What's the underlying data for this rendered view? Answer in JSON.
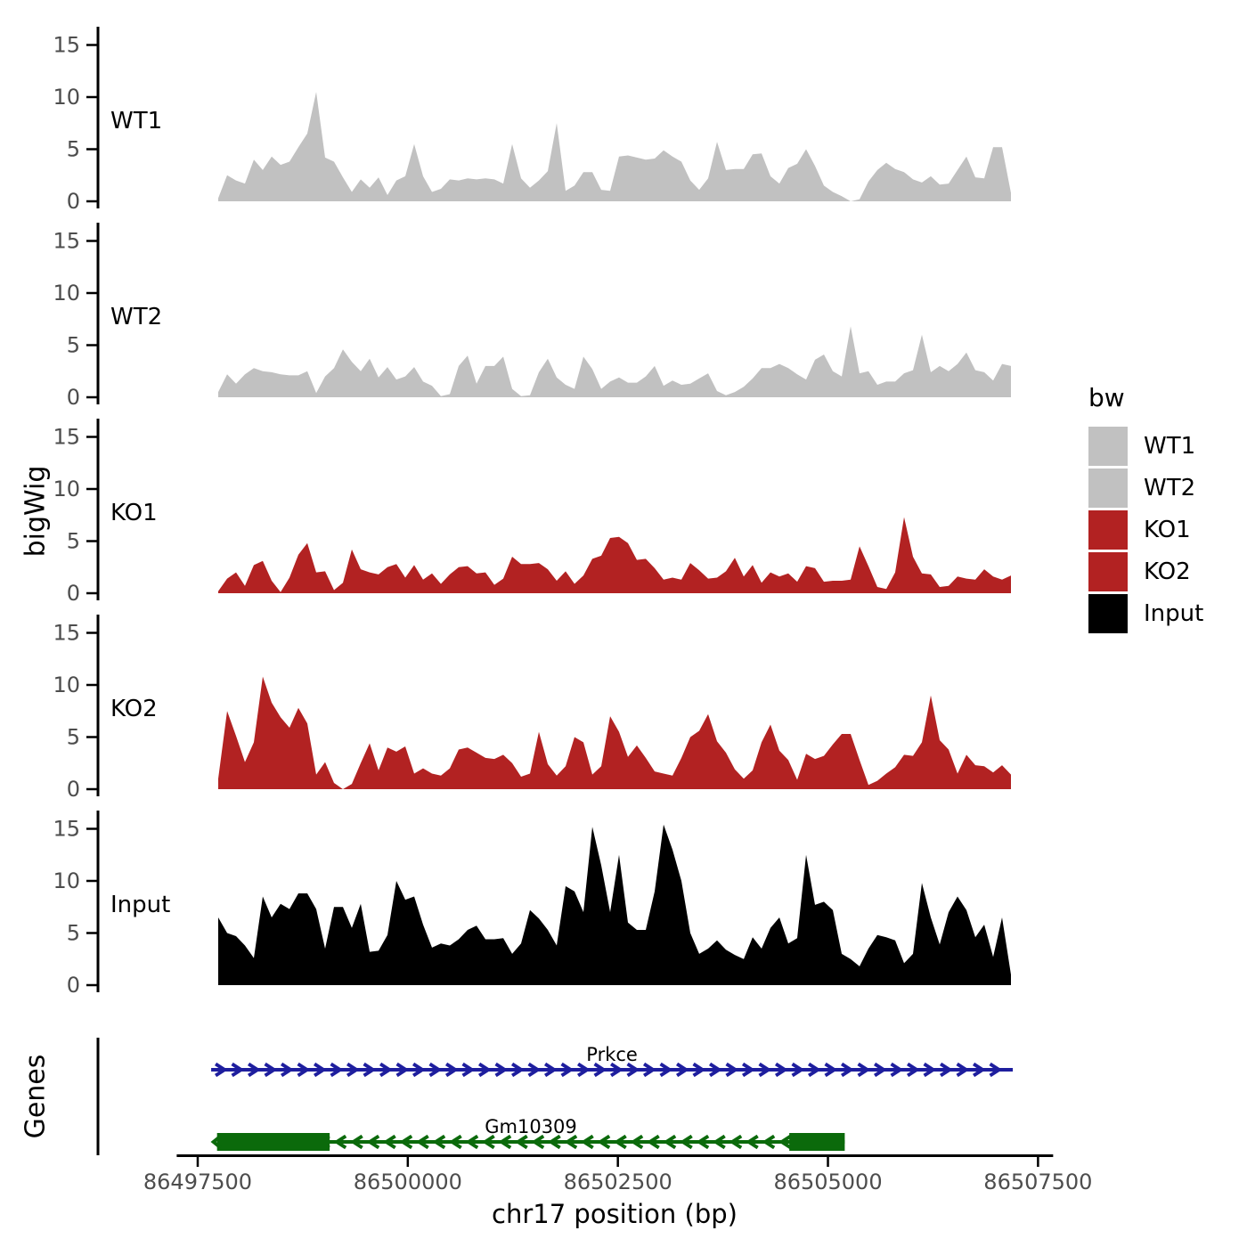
{
  "figure": {
    "y_axis_title": "bigWig",
    "genes_axis_title": "Genes",
    "x_axis_title": "chr17 position (bp)"
  },
  "legend": {
    "title": "bw",
    "entries": [
      {
        "label": "WT1",
        "color": "#c1c1c1"
      },
      {
        "label": "WT2",
        "color": "#c1c1c1"
      },
      {
        "label": "KO1",
        "color": "#b22222"
      },
      {
        "label": "KO2",
        "color": "#b22222"
      },
      {
        "label": "Input",
        "color": "#000000"
      }
    ]
  },
  "chart_data": {
    "type": "area",
    "title": "",
    "xlabel": "chr17 position (bp)",
    "ylabel": "bigWig",
    "genes_panel_label": "Genes",
    "xlim": [
      86497250,
      86507680
    ],
    "x_ticks": [
      86497500,
      86500000,
      86502500,
      86505000,
      86507500
    ],
    "ylim": [
      0,
      16.8
    ],
    "y_ticks": [
      0,
      5,
      10,
      15
    ],
    "grid": false,
    "legend_position": "right",
    "x_start": 86497744,
    "x_step": 106,
    "tracks": [
      {
        "name": "WT1",
        "color": "#c1c1c1",
        "values": [
          0.3,
          2.5,
          2,
          1.7,
          4,
          3,
          4.3,
          3.5,
          3.8,
          5.2,
          6.5,
          10.5,
          4.2,
          3.8,
          2.3,
          0.9,
          2.1,
          1.3,
          2.3,
          0.6,
          2,
          2.4,
          5.5,
          2.4,
          0.9,
          1.2,
          2.1,
          2,
          2.2,
          2.1,
          2.2,
          2.1,
          1.7,
          5.5,
          2.2,
          1.3,
          2,
          2.9,
          7.5,
          1,
          1.5,
          2.8,
          2.8,
          1.1,
          1,
          4.3,
          4.4,
          4.2,
          4,
          4.1,
          4.9,
          4.3,
          3.8,
          2,
          1.1,
          2.2,
          5.7,
          3,
          3.1,
          3.1,
          4.5,
          4.6,
          2.4,
          1.7,
          3.2,
          3.6,
          5,
          3.4,
          1.5,
          0.9,
          0.5,
          0,
          0.2,
          1.9,
          3,
          3.7,
          3.1,
          2.8,
          2.1,
          1.8,
          2.4,
          1.6,
          1.7,
          3,
          4.3,
          2.3,
          2.2,
          5.2,
          5.2,
          0.8
        ]
      },
      {
        "name": "WT2",
        "color": "#c1c1c1",
        "values": [
          0.5,
          2.2,
          1.3,
          2.2,
          2.8,
          2.5,
          2.4,
          2.2,
          2.1,
          2.1,
          2.5,
          0.4,
          2,
          2.8,
          4.6,
          3.4,
          2.5,
          3.7,
          1.9,
          2.9,
          1.7,
          2,
          2.9,
          1.5,
          1.1,
          0.1,
          0.3,
          3,
          4,
          1.3,
          3,
          3,
          3.9,
          0.8,
          0.1,
          0.2,
          2.4,
          3.7,
          1.9,
          1.2,
          0.8,
          3.9,
          2.7,
          0.8,
          1.5,
          1.9,
          1.4,
          1.4,
          2,
          3,
          1.1,
          1.6,
          1.2,
          1.3,
          1.8,
          2.3,
          0.6,
          0.2,
          0.5,
          1,
          1.8,
          2.8,
          2.8,
          3.2,
          2.8,
          2.2,
          1.7,
          3.6,
          4.1,
          2.5,
          2,
          6.8,
          2.3,
          2.5,
          1.2,
          1.5,
          1.5,
          2.3,
          2.6,
          6,
          2.4,
          3,
          2.5,
          3.2,
          4.3,
          2.6,
          2.4,
          1.6,
          3.2,
          3
        ]
      },
      {
        "name": "KO1",
        "color": "#b22222",
        "values": [
          0.2,
          1.4,
          2,
          0.7,
          2.7,
          3.1,
          1.2,
          0.1,
          1.5,
          3.7,
          4.8,
          2,
          2.1,
          0.3,
          1,
          4.2,
          2.3,
          2,
          1.8,
          2.5,
          2.8,
          1.5,
          2.7,
          1.3,
          1.9,
          0.9,
          1.8,
          2.5,
          2.6,
          1.9,
          2,
          0.8,
          1.4,
          3.5,
          2.8,
          2.8,
          2.9,
          2.3,
          1.2,
          2.1,
          0.9,
          1.7,
          3.3,
          3.6,
          5.3,
          5.4,
          4.8,
          3.2,
          3.3,
          2.4,
          1.3,
          1.5,
          1.3,
          2.9,
          2.2,
          1.4,
          1.5,
          2.1,
          3.4,
          1.6,
          2.7,
          1,
          2,
          1.6,
          1.9,
          1.1,
          2.6,
          2.4,
          1.1,
          1.2,
          1.2,
          1.3,
          4.5,
          2.6,
          0.6,
          0.4,
          2,
          7.3,
          3.5,
          1.9,
          1.8,
          0.6,
          0.7,
          1.6,
          1.4,
          1.3,
          2.3,
          1.6,
          1.3,
          1.7
        ]
      },
      {
        "name": "KO2",
        "color": "#b22222",
        "values": [
          1,
          7.5,
          5.1,
          2.6,
          4.5,
          10.8,
          8.3,
          6.9,
          5.9,
          7.8,
          6.3,
          1.4,
          2.6,
          0.6,
          0,
          0.5,
          2.5,
          4.4,
          1.8,
          4,
          3.6,
          4.1,
          1.5,
          2,
          1.5,
          1.3,
          2,
          3.8,
          4,
          3.5,
          3,
          2.9,
          3.3,
          2.5,
          1.2,
          1.5,
          5.5,
          2.4,
          1.3,
          2.2,
          5,
          4.5,
          1.4,
          2.2,
          7,
          5.5,
          3.1,
          4.2,
          3,
          1.7,
          1.5,
          1.3,
          3,
          5,
          5.6,
          7.2,
          4.6,
          3.5,
          1.9,
          1,
          1.8,
          4.5,
          6.2,
          3.7,
          2.8,
          0.9,
          3.4,
          2.9,
          3.2,
          4.3,
          5.3,
          5.3,
          2.8,
          0.4,
          0.8,
          1.5,
          2.1,
          3.3,
          3.2,
          4.5,
          9,
          4.7,
          3.8,
          1.5,
          3.3,
          2.3,
          2.2,
          1.6,
          2.3,
          1.4
        ]
      },
      {
        "name": "Input",
        "color": "#000000",
        "values": [
          6.5,
          5,
          4.7,
          3.8,
          2.6,
          8.5,
          6.5,
          7.8,
          7.3,
          8.8,
          8.8,
          7.3,
          3.5,
          7.5,
          7.5,
          5.5,
          7.8,
          3.2,
          3.3,
          4.8,
          10,
          8.2,
          8.5,
          5.8,
          3.6,
          4,
          3.8,
          4.4,
          5.3,
          5.7,
          4.4,
          4.4,
          4.5,
          3,
          4,
          7.2,
          6.4,
          5.3,
          3.8,
          9.5,
          9,
          7,
          15.2,
          11.5,
          7,
          12.5,
          6,
          5.3,
          5.3,
          9,
          15.4,
          13,
          10,
          5,
          3,
          3.5,
          4.3,
          3.4,
          2.9,
          2.5,
          4.6,
          3.5,
          5.5,
          6.5,
          4,
          4.5,
          12.5,
          7.7,
          8,
          7.2,
          3,
          2.5,
          1.8,
          3.5,
          4.8,
          4.6,
          4.3,
          2.1,
          3,
          9.8,
          6.5,
          3.9,
          7,
          8.5,
          7.2,
          4.6,
          5.8,
          2.7,
          6.5,
          1
        ]
      }
    ],
    "genes": [
      {
        "name": "Prkce",
        "strand": "+",
        "color": "#1e1e9e",
        "start": 86497660,
        "end": 86507200,
        "exons": []
      },
      {
        "name": "Gm10309",
        "strand": "-",
        "color": "#0b6a0b",
        "start": 86497730,
        "end": 86505200,
        "exons": [
          [
            86497730,
            86499070
          ],
          [
            86504540,
            86505200
          ]
        ]
      }
    ]
  }
}
